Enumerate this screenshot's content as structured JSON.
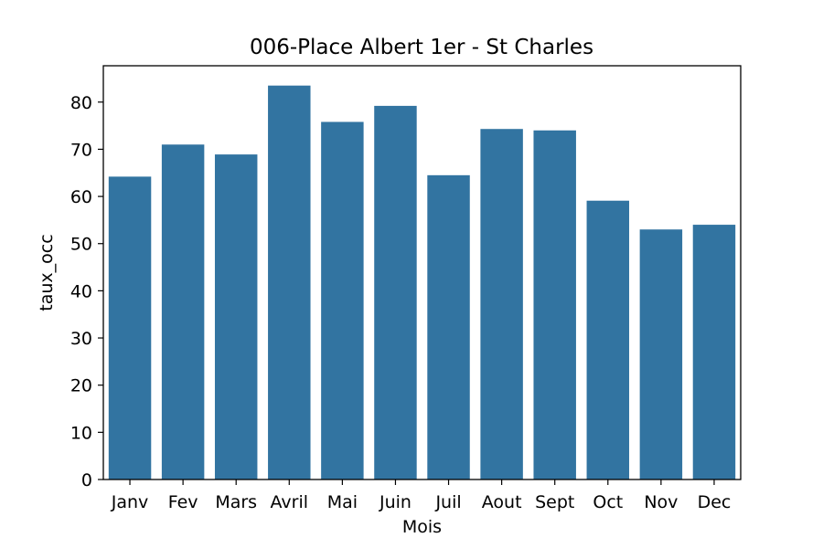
{
  "chart_data": {
    "type": "bar",
    "title": "006-Place Albert 1er - St Charles",
    "xlabel": "Mois",
    "ylabel": "taux_occ",
    "categories": [
      "Janv",
      "Fev",
      "Mars",
      "Avril",
      "Mai",
      "Juin",
      "Juil",
      "Aout",
      "Sept",
      "Oct",
      "Nov",
      "Dec"
    ],
    "values": [
      64.2,
      71.0,
      68.9,
      83.5,
      75.8,
      79.2,
      64.5,
      74.3,
      74.0,
      59.1,
      53.0,
      54.0
    ],
    "ylim": [
      0,
      87.7
    ],
    "yticks": [
      0,
      10,
      20,
      30,
      40,
      50,
      60,
      70,
      80
    ],
    "bar_color": "#3274a1",
    "grid": false,
    "legend": "none"
  }
}
